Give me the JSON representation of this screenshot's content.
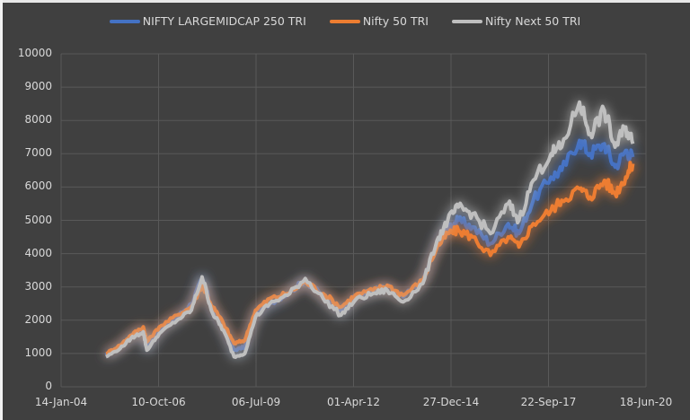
{
  "chart_data": {
    "type": "line",
    "title": "",
    "xlabel": "",
    "ylabel": "",
    "ylim": [
      0,
      10000
    ],
    "yticks": [
      0,
      1000,
      2000,
      3000,
      4000,
      5000,
      6000,
      7000,
      8000,
      9000,
      10000
    ],
    "xticks": [
      "14-Jan-04",
      "10-Oct-06",
      "06-Jul-09",
      "01-Apr-12",
      "27-Dec-14",
      "22-Sep-17",
      "18-Jun-20"
    ],
    "grid": true,
    "legend_position": "top",
    "x": [
      2005.3,
      2005.7,
      2006.0,
      2006.35,
      2006.45,
      2006.8,
      2007.3,
      2007.7,
      2008.0,
      2008.3,
      2008.6,
      2008.9,
      2009.2,
      2009.5,
      2009.9,
      2010.4,
      2010.9,
      2011.4,
      2011.9,
      2012.3,
      2012.8,
      2013.2,
      2013.65,
      2014.2,
      2014.6,
      2014.9,
      2015.2,
      2015.6,
      2016.1,
      2016.6,
      2016.9,
      2017.3,
      2017.8,
      2018.1,
      2018.6,
      2018.9,
      2019.3,
      2019.6,
      2019.9,
      2020.1
    ],
    "series": [
      {
        "name": "NIFTY LARGEMIDCAP 250 TRI",
        "color": "#4472c4",
        "values": [
          950,
          1200,
          1500,
          1750,
          1200,
          1700,
          2100,
          2500,
          3250,
          2300,
          1800,
          1100,
          1200,
          2200,
          2500,
          2800,
          3200,
          2700,
          2300,
          2700,
          2900,
          3000,
          2700,
          3200,
          4300,
          4800,
          5000,
          4800,
          4300,
          4900,
          4600,
          5600,
          6300,
          6500,
          7400,
          7000,
          7300,
          6600,
          7100,
          6900
        ]
      },
      {
        "name": "Nifty 50 TRI",
        "color": "#ed7d31",
        "values": [
          1000,
          1250,
          1550,
          1800,
          1350,
          1800,
          2150,
          2400,
          3050,
          2400,
          1900,
          1300,
          1400,
          2300,
          2650,
          2800,
          3150,
          2800,
          2400,
          2750,
          2900,
          3050,
          2750,
          3200,
          4200,
          4600,
          4700,
          4500,
          3950,
          4500,
          4200,
          4900,
          5300,
          5600,
          5950,
          5700,
          6200,
          5800,
          6300,
          6700
        ]
      },
      {
        "name": "Nifty Next 50 TRI",
        "color": "#bfbfbf",
        "values": [
          900,
          1150,
          1450,
          1650,
          1100,
          1600,
          2000,
          2300,
          3300,
          2200,
          1700,
          900,
          1000,
          2100,
          2500,
          2750,
          3250,
          2650,
          2150,
          2600,
          2800,
          2900,
          2550,
          3100,
          4400,
          5000,
          5400,
          5200,
          4600,
          5500,
          5000,
          6200,
          7000,
          7200,
          8550,
          7600,
          8300,
          7200,
          7800,
          7300
        ]
      }
    ]
  },
  "legend": {
    "items": [
      {
        "label": "NIFTY LARGEMIDCAP 250 TRI",
        "color": "#4472c4"
      },
      {
        "label": "Nifty 50 TRI",
        "color": "#ed7d31"
      },
      {
        "label": "Nifty Next 50 TRI",
        "color": "#bfbfbf"
      }
    ]
  },
  "axes": {
    "y_labels": [
      "0",
      "1000",
      "2000",
      "3000",
      "4000",
      "5000",
      "6000",
      "7000",
      "8000",
      "9000",
      "10000"
    ],
    "x_labels": [
      "14-Jan-04",
      "10-Oct-06",
      "06-Jul-09",
      "01-Apr-12",
      "27-Dec-14",
      "22-Sep-17",
      "18-Jun-20"
    ]
  },
  "colors": {
    "background": "#404040",
    "gridline": "#595959",
    "text": "#d9d9d9"
  }
}
